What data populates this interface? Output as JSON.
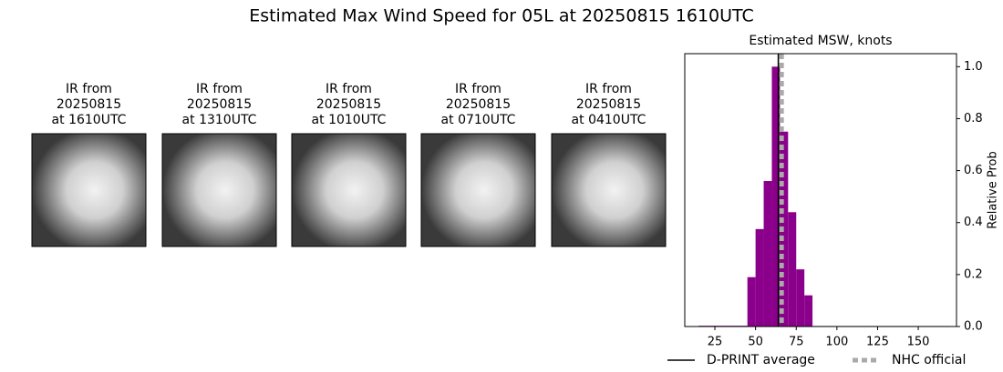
{
  "title": "Estimated Max Wind Speed for 05L at 20250815 1610UTC",
  "panels": [
    {
      "label": "IR from",
      "date": "20250815",
      "time": "at 1610UTC"
    },
    {
      "label": "IR from",
      "date": "20250815",
      "time": "at 1310UTC"
    },
    {
      "label": "IR from",
      "date": "20250815",
      "time": "at 1010UTC"
    },
    {
      "label": "IR from",
      "date": "20250815",
      "time": "at 0710UTC"
    },
    {
      "label": "IR from",
      "date": "20250815",
      "time": "at 0410UTC"
    }
  ],
  "chart_data": {
    "type": "histogram",
    "title": "Estimated MSW, knots",
    "y_label": "Relative Prob",
    "bins": [
      15,
      20,
      25,
      30,
      35,
      40,
      45,
      50,
      55,
      60,
      65,
      70,
      75,
      80,
      85,
      90,
      95,
      100,
      105,
      110,
      115,
      120,
      125,
      130,
      135,
      140,
      145,
      150,
      155,
      160,
      165,
      170
    ],
    "values": [
      0.003,
      0.003,
      0.003,
      0.003,
      0.003,
      0.003,
      0.19,
      0.375,
      0.56,
      1.0,
      0.75,
      0.44,
      0.22,
      0.12,
      0.002,
      0.002,
      0.002,
      0.002,
      0.002,
      0.002,
      0.002,
      0.002,
      0.002,
      0.002,
      0.002,
      0.002,
      0.002,
      0.002,
      0.002,
      0.002,
      0.002
    ],
    "color": "#8b008b",
    "xlim": [
      6.5,
      173.5
    ],
    "ylim": [
      0,
      1.05
    ],
    "xticks": [
      25,
      50,
      75,
      100,
      125,
      150
    ],
    "yticks": [
      {
        "value": 0,
        "label": "0.0"
      },
      0.2,
      0.4,
      0.6,
      0.8,
      {
        "value": 1,
        "label": "1.0"
      }
    ],
    "lines": [
      {
        "name": "D-PRINT average",
        "value": 64,
        "color": "#000000",
        "dashed": false
      },
      {
        "name": "NHC official",
        "value": 66,
        "color": "#aaaaaa",
        "dashed": true
      }
    ]
  }
}
